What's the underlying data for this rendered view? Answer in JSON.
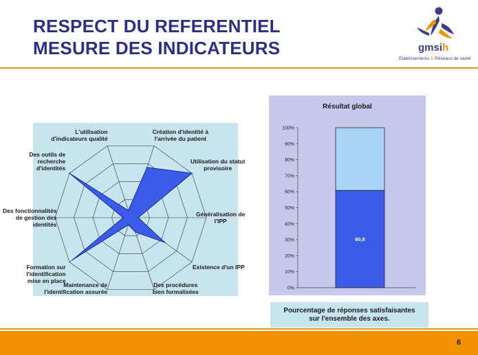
{
  "header": {
    "title_line1": "RESPECT DU REFERENTIEL",
    "title_line2": "MESURE DES INDICATEURS"
  },
  "logo": {
    "name_main": "gmsi",
    "name_accent": "h",
    "tagline_part1": "Etablissements",
    "tagline_amp": "&",
    "tagline_part2": "Réseaux de santé"
  },
  "colors": {
    "accent": "#f39200",
    "title": "#2b2f86",
    "radar_fill": "#3a5ce8",
    "bar_fill": "#3a5ce8",
    "bar_rest": "#a8d4f8"
  },
  "chart_data": [
    {
      "type": "radar",
      "axes": [
        "Création d'identité à l'arrivée du patient",
        "Utilisation du statut provisoire",
        "Généralisation de l'IPP",
        "Existence d'un IPP",
        "Des procédures bien formalisées",
        "Maintenance de l'identification assurée",
        "Formation sur l'identification mise en place",
        "Des fonctionnalités de gestion des identités",
        "Des outils de recherche d'identités",
        "L'utilisation d'indicateurs qualité"
      ],
      "labels": [
        [
          "Création d'identité à",
          "l'arrivée du patient"
        ],
        [
          "Utilisation du statut",
          "provisoire"
        ],
        [
          "Généralisation de",
          "l'IPP"
        ],
        [
          "Existence d'un IPP"
        ],
        [
          "Des procédures",
          "bien formalisées"
        ],
        [
          "Maintenance de",
          "l'identification assurée"
        ],
        [
          "Formation sur",
          "l'identification",
          "mise en place"
        ],
        [
          "Des fonctionnalités",
          "de gestion des",
          "identités"
        ],
        [
          "Des outils de",
          "recherche",
          "d'identités"
        ],
        [
          "L'utilisation",
          "d'indicateurs qualité"
        ]
      ],
      "values": [
        0.7,
        1.0,
        0.1,
        0.56,
        0.2,
        0.1,
        0.95,
        0.1,
        1.0,
        0.1
      ],
      "range": [
        0,
        1
      ],
      "rings": 4
    },
    {
      "type": "bar",
      "title": "Résultat global",
      "categories": [
        ""
      ],
      "values": [
        60.8
      ],
      "value_label": "60,8",
      "stacked_total": 100,
      "ylim": [
        0,
        100
      ],
      "yticks": [
        "0%",
        "10%",
        "20%",
        "30%",
        "40%",
        "50%",
        "60%",
        "70%",
        "80%",
        "90%",
        "100%"
      ]
    }
  ],
  "caption": {
    "line1": "Pourcentage de réponses satisfaisantes",
    "line2": "sur l'ensemble des axes."
  },
  "footer": {
    "page_number": "6"
  }
}
